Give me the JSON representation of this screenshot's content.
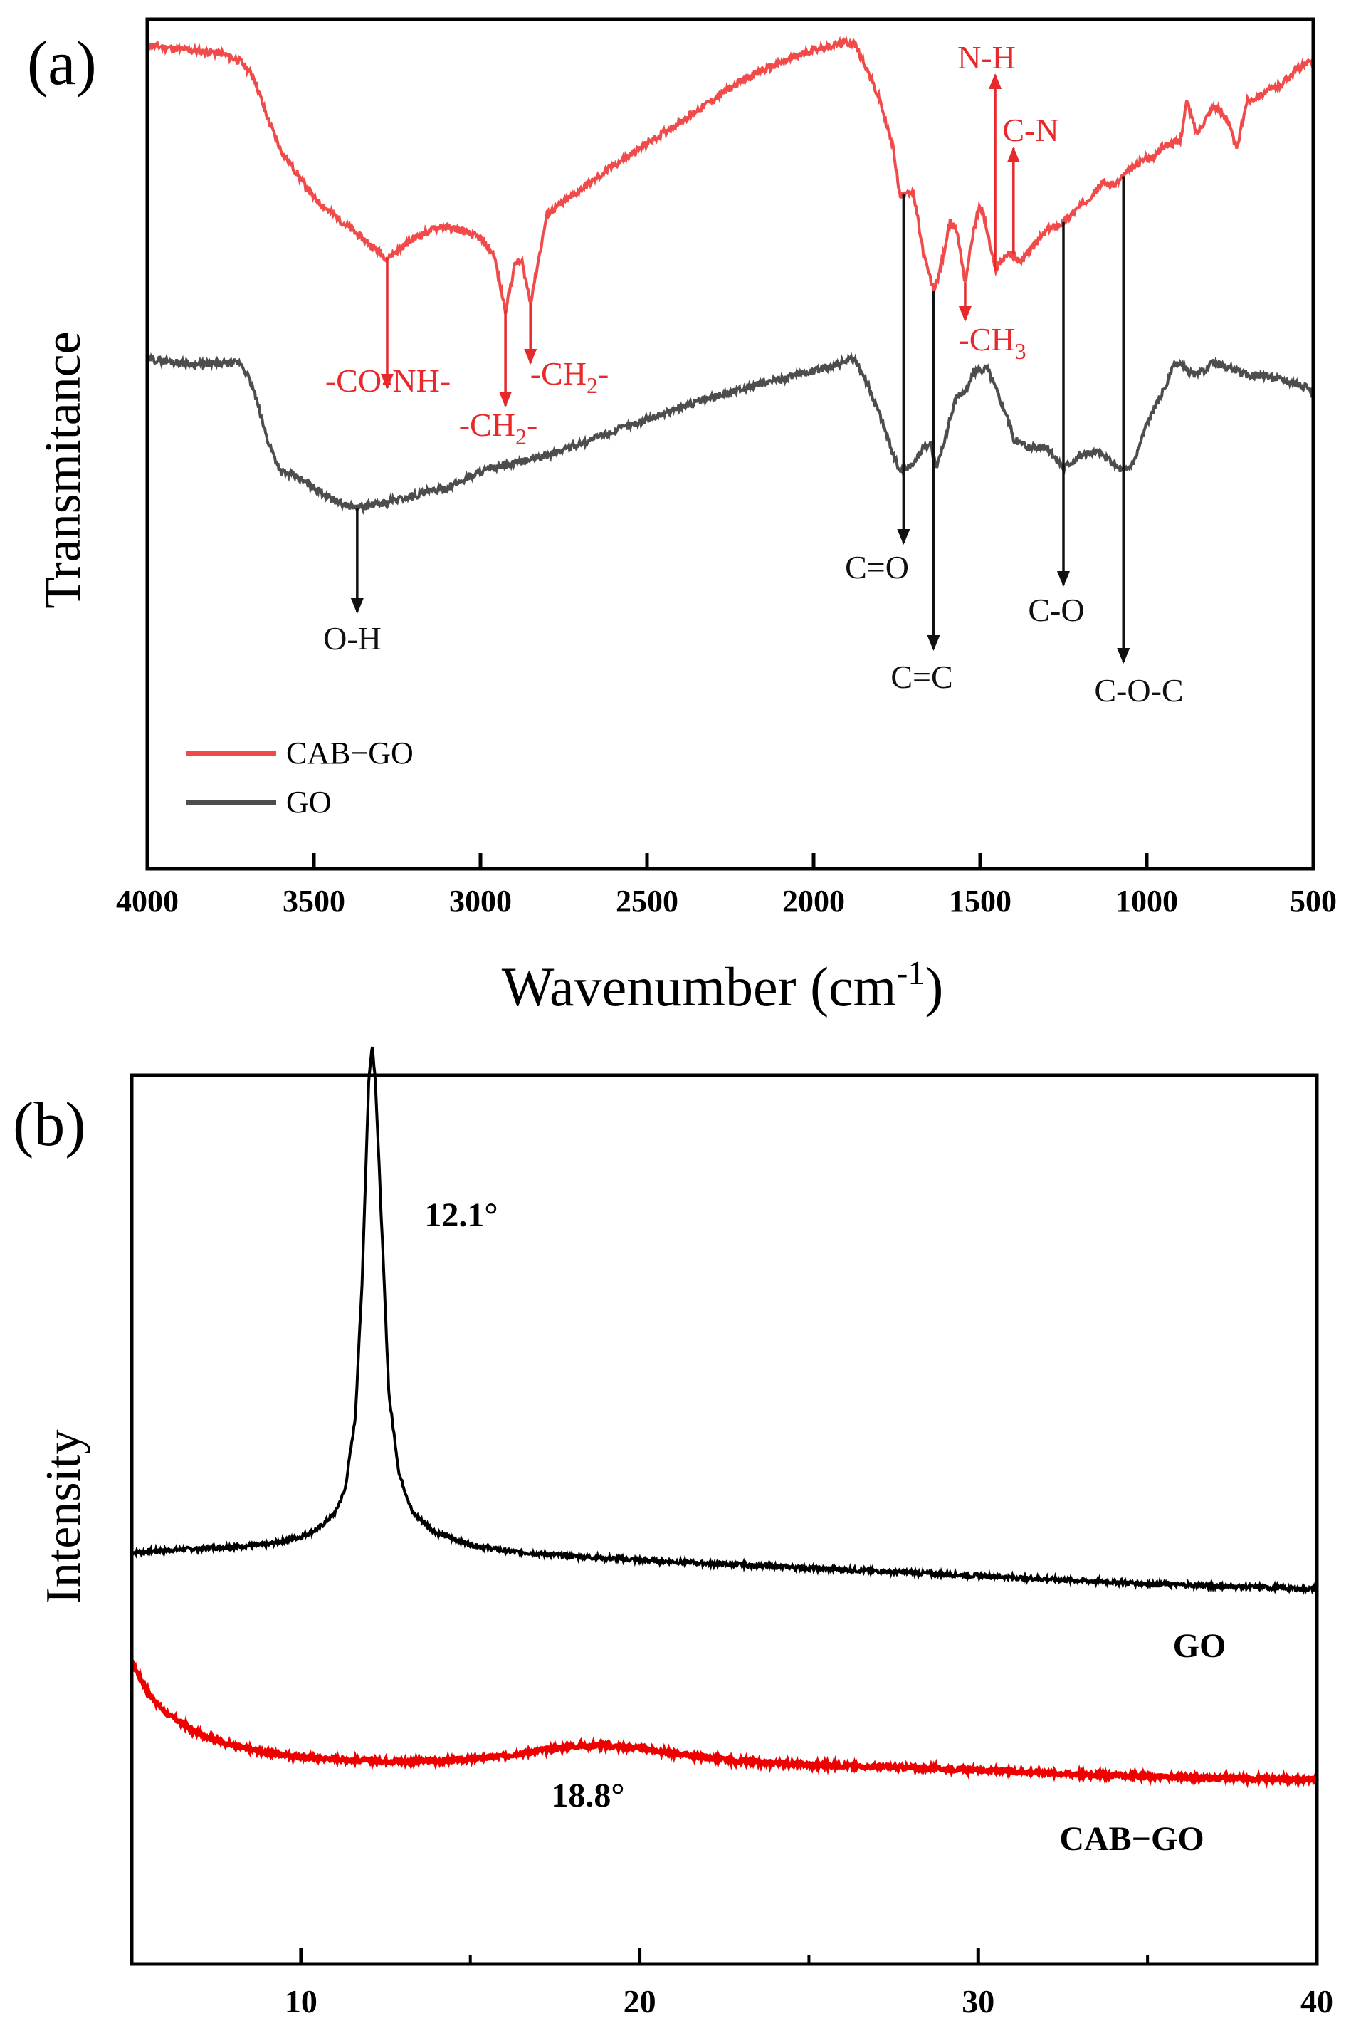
{
  "chart_data": [
    {
      "type": "line",
      "panel_label": "(a)",
      "xlabel_main": "Wavenumber (cm",
      "xlabel_sup": "-1",
      "xlabel_close": ")",
      "ylabel": "Transmitance",
      "xlim": [
        4000,
        500
      ],
      "xticks": [
        "4000",
        "3500",
        "3000",
        "2500",
        "2000",
        "1500",
        "1000",
        "500"
      ],
      "ylim": [
        0,
        100
      ],
      "legend": [
        "CAB−GO",
        "GO"
      ],
      "colors": {
        "CAB−GO": "#f04a4a",
        "GO": "#4d4d4d",
        "arrow_red": "#e8292b",
        "arrow_black": "#111111"
      },
      "series": [
        {
          "name": "CAB−GO",
          "x": [
            4000,
            3880,
            3780,
            3720,
            3680,
            3640,
            3600,
            3500,
            3400,
            3280,
            3200,
            3120,
            3060,
            3000,
            2960,
            2925,
            2895,
            2875,
            2850,
            2800,
            2600,
            2400,
            2200,
            2000,
            1900,
            1880,
            1850,
            1800,
            1760,
            1740,
            1720,
            1700,
            1670,
            1640,
            1620,
            1590,
            1570,
            1545,
            1520,
            1500,
            1490,
            1470,
            1455,
            1440,
            1420,
            1400,
            1380,
            1340,
            1300,
            1250,
            1200,
            1150,
            1130,
            1100,
            1050,
            1000,
            980,
            950,
            900,
            880,
            850,
            800,
            760,
            730,
            700,
            650,
            600,
            550,
            500
          ],
          "y": [
            99,
            98.4,
            98,
            97,
            95,
            90,
            86,
            80,
            76.5,
            72.5,
            75,
            76.5,
            76,
            75,
            73,
            66,
            72,
            72,
            67,
            78,
            84,
            89.5,
            95,
            98.5,
            99.3,
            99.3,
            97,
            92,
            86,
            80,
            81,
            80.5,
            73,
            68.5,
            71,
            77,
            76,
            69.5,
            76,
            79,
            78,
            74,
            71,
            72,
            73,
            73,
            72,
            74,
            76,
            77,
            79,
            81,
            82,
            81.5,
            83.5,
            85,
            85,
            86.5,
            87,
            92,
            88,
            91.5,
            90,
            86,
            92,
            93,
            94,
            96,
            97
          ]
        },
        {
          "name": "GO",
          "x": [
            4000,
            3850,
            3720,
            3700,
            3680,
            3640,
            3600,
            3560,
            3500,
            3420,
            3370,
            3300,
            3200,
            3100,
            3000,
            2900,
            2800,
            2600,
            2400,
            2200,
            2000,
            1900,
            1880,
            1850,
            1800,
            1760,
            1740,
            1720,
            1700,
            1680,
            1650,
            1630,
            1600,
            1570,
            1540,
            1520,
            1500,
            1480,
            1460,
            1420,
            1400,
            1350,
            1300,
            1250,
            1200,
            1150,
            1100,
            1070,
            1040,
            1000,
            950,
            920,
            900,
            880,
            850,
            800,
            760,
            700,
            650,
            600,
            550,
            500
          ],
          "y": [
            60,
            59.3,
            59.5,
            58,
            56,
            50,
            46,
            45.5,
            44,
            42,
            41.5,
            42,
            43,
            44,
            46,
            47,
            48,
            51,
            54,
            56.5,
            58.5,
            59.7,
            60,
            58,
            53,
            48,
            46,
            46.5,
            47,
            48.5,
            49.5,
            46.5,
            51,
            55.5,
            56,
            58.5,
            58.5,
            59,
            57,
            53,
            50,
            49,
            49,
            46.5,
            48,
            48.5,
            47,
            46,
            47,
            52,
            56,
            59,
            59.5,
            58.5,
            58,
            59.5,
            59,
            58,
            58,
            57.5,
            57,
            56
          ]
        }
      ],
      "annotations": [
        {
          "label": "-CO-NH-",
          "x": 3280,
          "series": "CAB−GO",
          "dir": "down",
          "color": "red"
        },
        {
          "label": "-CH",
          "sub": "2",
          "tail": "-",
          "x": 2925,
          "series": "CAB−GO",
          "dir": "down",
          "color": "red",
          "position": "lower"
        },
        {
          "label": "-CH",
          "sub": "2",
          "tail": "-",
          "x": 2850,
          "series": "CAB−GO",
          "dir": "down",
          "color": "red",
          "position": "right"
        },
        {
          "label": "-CH",
          "sub": "3",
          "tail": "",
          "x": 1545,
          "series": "CAB−GO",
          "dir": "down",
          "color": "red"
        },
        {
          "label": "N-H",
          "x": 1455,
          "series": "CAB−GO",
          "dir": "up",
          "color": "red"
        },
        {
          "label": "C-N",
          "x": 1400,
          "series": "CAB−GO",
          "dir": "up",
          "color": "red"
        },
        {
          "label": "O-H",
          "x": 3370,
          "series": "GO",
          "dir": "down",
          "color": "black"
        },
        {
          "label": "C=O",
          "x": 1730,
          "series": "CAB−GO",
          "dir": "down",
          "color": "black"
        },
        {
          "label": "C=C",
          "x": 1640,
          "series": "CAB−GO",
          "dir": "down",
          "color": "black"
        },
        {
          "label": "C-O",
          "x": 1250,
          "series": "CAB−GO",
          "dir": "down",
          "color": "black"
        },
        {
          "label": "C-O-C",
          "x": 1070,
          "series": "CAB−GO",
          "dir": "down",
          "color": "black"
        }
      ]
    },
    {
      "type": "line",
      "panel_label": "(b)",
      "xlabel": "",
      "ylabel": "Intensity",
      "xlim": [
        5,
        40
      ],
      "xticks": [
        "10",
        "20",
        "30",
        "40"
      ],
      "ylim": [
        0,
        100
      ],
      "colors": {
        "GO": "#000000",
        "CAB−GO": "#ee0000"
      },
      "series": [
        {
          "name": "GO",
          "x": [
            5,
            7,
            9,
            10,
            10.5,
            11,
            11.3,
            11.6,
            11.8,
            12.0,
            12.1,
            12.2,
            12.4,
            12.6,
            12.9,
            13.3,
            14,
            15,
            16,
            18,
            20,
            25,
            30,
            35,
            40
          ],
          "y": [
            28,
            28.5,
            29,
            30,
            31,
            33,
            36,
            45,
            62,
            88,
            93,
            88,
            68,
            48,
            38,
            33,
            30.5,
            29,
            28.2,
            27.5,
            27,
            26,
            25,
            24,
            23.3
          ]
        },
        {
          "name": "CAB−GO",
          "x": [
            5,
            5.5,
            6,
            7,
            8,
            9,
            10,
            11,
            12,
            13,
            14,
            15,
            16,
            17,
            18,
            18.8,
            20,
            21,
            22,
            23,
            25,
            28,
            30,
            33,
            35,
            38,
            40
          ],
          "y": [
            14,
            10,
            7.5,
            4.8,
            3.3,
            2.4,
            1.9,
            1.6,
            1.4,
            1.3,
            1.35,
            1.6,
            2.0,
            2.7,
            3.2,
            3.4,
            3.0,
            2.4,
            1.8,
            1.3,
            0.9,
            0.5,
            0.2,
            -0.3,
            -0.6,
            -0.9,
            -1.0
          ]
        }
      ],
      "annotations": [
        {
          "label": "12.1°",
          "x": 12.1,
          "series": "GO"
        },
        {
          "label": "18.8°",
          "x": 18.8,
          "series": "CAB−GO"
        }
      ],
      "series_labels": [
        "GO",
        "CAB−GO"
      ]
    }
  ]
}
